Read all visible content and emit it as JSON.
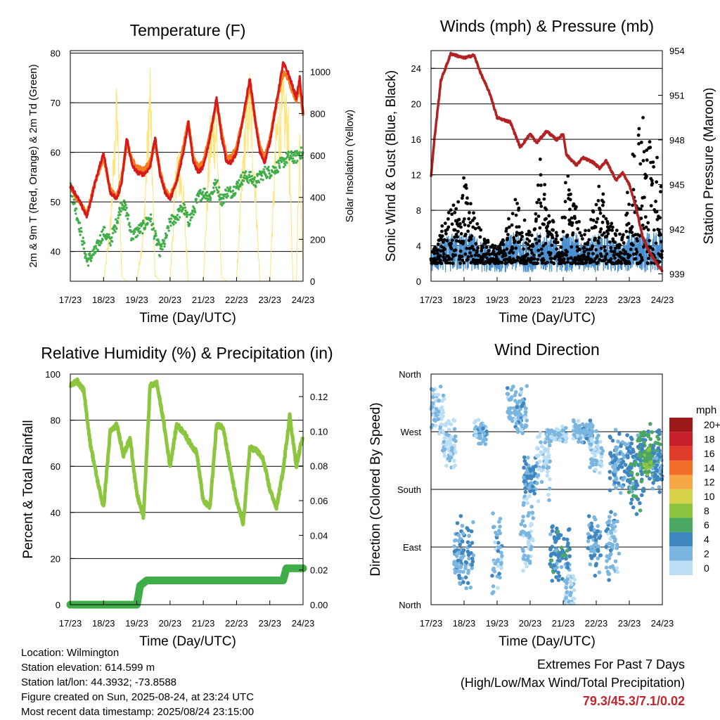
{
  "chart_data": [
    {
      "type": "line",
      "title": "Temperature (F)",
      "xlabel": "Time (Day/UTC)",
      "ylabel": "2m & 9m T (Red, Orange) & 2m Td (Green)",
      "y2label": "Solar Insolation (Yellow)",
      "x_ticks": [
        "17/23",
        "18/23",
        "19/23",
        "20/23",
        "21/23",
        "22/23",
        "23/23",
        "24/23"
      ],
      "ylim": [
        34,
        80.5
      ],
      "y_ticks": [
        40,
        50,
        60,
        70,
        80
      ],
      "y2lim": [
        0,
        1100
      ],
      "y2_ticks": [
        0,
        200,
        400,
        600,
        800,
        1000
      ],
      "grid": true,
      "x_days": [
        0,
        0.25,
        0.5,
        0.75,
        1,
        1.2,
        1.4,
        1.55,
        1.7,
        1.85,
        2,
        2.2,
        2.4,
        2.55,
        2.7,
        2.85,
        3,
        3.2,
        3.4,
        3.55,
        3.7,
        3.85,
        4,
        4.2,
        4.4,
        4.55,
        4.7,
        4.85,
        5,
        5.2,
        5.4,
        5.55,
        5.7,
        5.85,
        6,
        6.2,
        6.4,
        6.55,
        6.7,
        6.8,
        6.9,
        7
      ],
      "series": [
        {
          "color": "#d7191c",
          "values": [
            53.5,
            50.5,
            47,
            54,
            60,
            52,
            50.5,
            54,
            63,
            57.5,
            56,
            55.5,
            57,
            63,
            55.5,
            52,
            50.5,
            54,
            60,
            66,
            58,
            56,
            57,
            63,
            71,
            63,
            58,
            58,
            60,
            67,
            75,
            67,
            60,
            58,
            62,
            70,
            78,
            76,
            73,
            71,
            75,
            68
          ]
        },
        {
          "color": "#f47b20",
          "values": [
            53,
            50.2,
            47.5,
            54,
            59,
            52.5,
            51,
            55,
            62,
            58.5,
            57,
            56.5,
            58,
            62,
            56,
            52.5,
            51,
            54.5,
            61,
            66,
            59,
            57,
            58,
            63.5,
            70,
            64,
            59,
            59,
            61,
            67,
            74,
            67,
            61,
            59,
            62.5,
            70,
            76,
            75,
            72,
            70.5,
            74,
            67.5
          ]
        },
        {
          "color": "#3fae49",
          "values": [
            53,
            46,
            38,
            40,
            44,
            42,
            46,
            50,
            48,
            43,
            44,
            45,
            47,
            43,
            40,
            42,
            46,
            47,
            49,
            46,
            48,
            51,
            52,
            51,
            54,
            50,
            52,
            52,
            53,
            55,
            55,
            54,
            55,
            56,
            56,
            57,
            58,
            59,
            59,
            59,
            60,
            59.5
          ]
        },
        {
          "color": "#fde47b",
          "values": [
            0,
            0,
            0,
            0,
            0,
            300,
            1000,
            20,
            0,
            0,
            0,
            280,
            1100,
            30,
            0,
            0,
            0,
            700,
            500,
            0,
            0,
            0,
            0,
            800,
            900,
            20,
            0,
            0,
            0,
            700,
            1050,
            600,
            0,
            0,
            0,
            850,
            1000,
            900,
            0,
            0,
            850,
            50
          ]
        }
      ]
    },
    {
      "type": "scatter",
      "title": "Winds (mph) & Pressure (mb)",
      "xlabel": "Time (Day/UTC)",
      "ylabel": "Sonic Wind & Gust (Blue, Black)",
      "y2label": "Station Pressure (Maroon)",
      "x_ticks": [
        "17/23",
        "18/23",
        "19/23",
        "20/23",
        "21/23",
        "22/23",
        "23/23",
        "24/23"
      ],
      "ylim": [
        0,
        26
      ],
      "y_ticks": [
        0,
        4,
        8,
        12,
        16,
        20,
        24
      ],
      "y2lim": [
        938.5,
        954
      ],
      "y2_ticks": [
        939,
        942,
        945,
        948,
        951,
        954
      ],
      "grid": true,
      "gust_profile": {
        "x": [
          0,
          0.3,
          0.7,
          1,
          1.3,
          1.6,
          2,
          2.3,
          2.6,
          2.9,
          3.1,
          3.3,
          3.6,
          3.9,
          4.1,
          4.3,
          4.6,
          4.9,
          5.1,
          5.3,
          5.6,
          5.8,
          6,
          6.3,
          6.6,
          6.9,
          7
        ],
        "max": [
          3,
          6,
          9,
          12,
          8,
          5,
          4,
          7,
          10,
          6,
          5,
          14,
          9,
          4,
          13,
          10,
          5,
          8,
          12,
          8,
          6,
          5,
          12,
          22,
          17,
          14,
          12
        ]
      },
      "series": [
        {
          "name": "pressure",
          "color": "#b22222",
          "x": [
            0,
            0.1,
            0.3,
            0.6,
            1,
            1.3,
            1.5,
            1.8,
            2,
            2.4,
            2.7,
            3,
            3.2,
            3.5,
            3.8,
            4,
            4.1,
            4.4,
            4.6,
            4.9,
            5.1,
            5.3,
            5.6,
            5.8,
            6,
            6.2,
            6.4,
            6.6,
            6.8,
            7
          ],
          "values": [
            945.5,
            948,
            952,
            953.8,
            953.5,
            953.7,
            952.5,
            951,
            949.5,
            949.2,
            947.5,
            948.4,
            947.8,
            948.6,
            948,
            948.4,
            947,
            946.3,
            946.8,
            946.5,
            946.1,
            946.6,
            945.3,
            945.8,
            945,
            943.5,
            941.5,
            940.5,
            939.8,
            939.2
          ]
        }
      ]
    },
    {
      "type": "line",
      "title": "Relative Humidity (%) & Precipitation (in)",
      "xlabel": "Time (Day/UTC)",
      "ylabel": "Percent & Total Rainfall",
      "x_ticks": [
        "17/23",
        "18/23",
        "19/23",
        "20/23",
        "21/23",
        "22/23",
        "23/23",
        "24/23"
      ],
      "ylim": [
        0,
        100
      ],
      "y_ticks": [
        0,
        20,
        40,
        60,
        80,
        100
      ],
      "y2lim": [
        0,
        0.133
      ],
      "y2_ticks": [
        "0.00",
        "0.02",
        "0.04",
        "0.06",
        "0.08",
        "0.10",
        "0.12"
      ],
      "grid": true,
      "series": [
        {
          "color": "#8cc63f",
          "x": [
            0,
            0.2,
            0.4,
            0.6,
            0.8,
            1,
            1.2,
            1.4,
            1.6,
            1.8,
            2,
            2.2,
            2.4,
            2.6,
            2.8,
            3,
            3.2,
            3.4,
            3.6,
            3.8,
            4,
            4.2,
            4.4,
            4.6,
            4.8,
            5,
            5.2,
            5.4,
            5.6,
            5.8,
            6,
            6.2,
            6.4,
            6.6,
            6.8,
            7
          ],
          "values": [
            95,
            97,
            93,
            70,
            55,
            42,
            75,
            78,
            65,
            72,
            48,
            38,
            95,
            96,
            80,
            60,
            78,
            75,
            70,
            66,
            45,
            42,
            78,
            77,
            60,
            45,
            35,
            68,
            67,
            63,
            50,
            42,
            58,
            82,
            60,
            74
          ]
        },
        {
          "color": "#3fae49",
          "x": [
            0,
            2,
            2.1,
            2.3,
            6.4,
            6.5,
            7
          ],
          "values": [
            0,
            0,
            0.011,
            0.014,
            0.014,
            0.021,
            0.021
          ]
        }
      ]
    },
    {
      "type": "scatter",
      "title": "Wind Direction",
      "xlabel": "Time (Day/UTC)",
      "ylabel": "Direction (Colored By Speed)",
      "x_ticks": [
        "17/23",
        "18/23",
        "19/23",
        "20/23",
        "21/23",
        "22/23",
        "23/23",
        "24/23"
      ],
      "y_ticks": [
        "North",
        "East",
        "South",
        "West",
        "North"
      ],
      "ylim": [
        0,
        360
      ],
      "grid": true,
      "legend": {
        "title": "mph",
        "labels": [
          "20+",
          "18",
          "16",
          "14",
          "12",
          "10",
          "8",
          "6",
          "4",
          "2",
          "0"
        ],
        "colors": [
          "#9e1a1a",
          "#c8202a",
          "#e03b2b",
          "#f26d2a",
          "#f6a745",
          "#d7d44c",
          "#8dc43f",
          "#4aa863",
          "#3f86c1",
          "#7ab6e0",
          "#bcdff5"
        ]
      },
      "clusters": [
        {
          "x": 0.2,
          "y": 300,
          "dx": 0.2,
          "dy": 45,
          "speed": 1
        },
        {
          "x": 0.55,
          "y": 250,
          "dx": 0.2,
          "dy": 50,
          "speed": 0.5
        },
        {
          "x": 1.0,
          "y": 80,
          "dx": 0.3,
          "dy": 60,
          "speed": 3
        },
        {
          "x": 1.5,
          "y": 270,
          "dx": 0.2,
          "dy": 20,
          "speed": 2
        },
        {
          "x": 2.0,
          "y": 80,
          "dx": 0.15,
          "dy": 70,
          "speed": 2
        },
        {
          "x": 2.6,
          "y": 300,
          "dx": 0.3,
          "dy": 45,
          "speed": 2
        },
        {
          "x": 2.9,
          "y": 110,
          "dx": 0.2,
          "dy": 70,
          "speed": 1
        },
        {
          "x": 3.0,
          "y": 200,
          "dx": 0.2,
          "dy": 35,
          "speed": 3
        },
        {
          "x": 3.4,
          "y": 220,
          "dx": 0.2,
          "dy": 60,
          "speed": 1
        },
        {
          "x": 3.9,
          "y": 80,
          "dx": 0.3,
          "dy": 50,
          "speed": 4
        },
        {
          "x": 3.8,
          "y": 265,
          "dx": 0.3,
          "dy": 15,
          "speed": 1
        },
        {
          "x": 4.2,
          "y": 20,
          "dx": 0.15,
          "dy": 40,
          "speed": 1
        },
        {
          "x": 4.6,
          "y": 270,
          "dx": 0.3,
          "dy": 20,
          "speed": 2
        },
        {
          "x": 4.95,
          "y": 95,
          "dx": 0.2,
          "dy": 55,
          "speed": 3
        },
        {
          "x": 5.0,
          "y": 240,
          "dx": 0.2,
          "dy": 40,
          "speed": 1
        },
        {
          "x": 5.5,
          "y": 90,
          "dx": 0.2,
          "dy": 70,
          "speed": 2
        },
        {
          "x": 5.7,
          "y": 220,
          "dx": 0.3,
          "dy": 60,
          "speed": 3
        },
        {
          "x": 6.2,
          "y": 200,
          "dx": 0.25,
          "dy": 70,
          "speed": 4
        },
        {
          "x": 6.6,
          "y": 240,
          "dx": 0.35,
          "dy": 50,
          "speed": 5
        },
        {
          "x": 6.6,
          "y": 225,
          "dx": 0.15,
          "dy": 25,
          "speed": 7
        },
        {
          "x": 6.9,
          "y": 210,
          "dx": 0.2,
          "dy": 40,
          "speed": 3
        }
      ]
    }
  ],
  "info": {
    "location": "Location: Wilmington",
    "elevation": "Station elevation: 614.599 m",
    "latlon": "Station lat/lon: 44.3932; -73.8588",
    "created": "Figure created on Sun, 2025-08-24, at 23:24 UTC",
    "recent": "Most recent data timestamp: 2025/08/24 23:15:00"
  },
  "extremes": {
    "line1": "Extremes For Past 7 Days",
    "line2": "(High/Low/Max Wind/Total Precipitation)",
    "values": "79.3/45.3/7.1/0.02"
  }
}
